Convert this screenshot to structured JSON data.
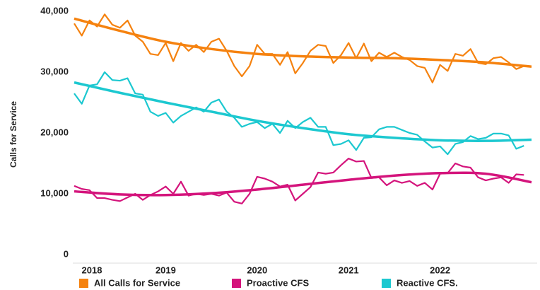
{
  "chart_data": {
    "type": "line",
    "y_label": "Calls for Service",
    "x": [
      2018.0,
      2018.083,
      2018.167,
      2018.25,
      2018.333,
      2018.417,
      2018.5,
      2018.583,
      2018.667,
      2018.75,
      2018.833,
      2018.917,
      2019.0,
      2019.083,
      2019.167,
      2019.25,
      2019.333,
      2019.417,
      2019.5,
      2019.583,
      2019.667,
      2019.75,
      2019.833,
      2019.917,
      2020.0,
      2020.083,
      2020.167,
      2020.25,
      2020.333,
      2020.417,
      2020.5,
      2020.583,
      2020.667,
      2020.75,
      2020.833,
      2020.917,
      2021.0,
      2021.083,
      2021.167,
      2021.25,
      2021.333,
      2021.417,
      2021.5,
      2021.583,
      2021.667,
      2021.75,
      2021.833,
      2021.917,
      2022.0,
      2022.083,
      2022.167,
      2022.25,
      2022.333,
      2022.417,
      2022.5,
      2022.583,
      2022.667,
      2022.75,
      2022.833,
      2022.917
    ],
    "trend_x": [
      2018.0,
      2018.5,
      2019.0,
      2019.5,
      2020.0,
      2020.5,
      2021.0,
      2021.5,
      2022.0,
      2022.5,
      2023.0
    ],
    "series": [
      {
        "name": "All Calls for Service",
        "color": "#f5820f",
        "values": [
          38000,
          36000,
          38500,
          37500,
          39500,
          37800,
          37300,
          38500,
          36000,
          35000,
          33000,
          32800,
          34800,
          31800,
          34800,
          33500,
          34500,
          33300,
          35000,
          35500,
          33500,
          31000,
          29300,
          31000,
          34500,
          33000,
          33000,
          31200,
          33300,
          29800,
          31500,
          33500,
          34500,
          34300,
          31500,
          32800,
          34800,
          32300,
          34700,
          31800,
          33200,
          32500,
          33200,
          32500,
          32000,
          31000,
          30700,
          28300,
          31200,
          30200,
          33000,
          32700,
          33800,
          31500,
          31300,
          32300,
          32500,
          31600,
          30500,
          31000
        ],
        "trend": [
          38800,
          36800,
          35000,
          33800,
          33000,
          32600,
          32400,
          32300,
          32000,
          31600,
          30900
        ]
      },
      {
        "name": "Proactive CFS",
        "color": "#d4147c",
        "values": [
          11300,
          10800,
          10600,
          9300,
          9300,
          9000,
          8800,
          9400,
          10000,
          9000,
          9800,
          10400,
          11200,
          10000,
          12000,
          9700,
          10000,
          9800,
          10000,
          9700,
          10200,
          8700,
          8400,
          10000,
          12800,
          12500,
          12000,
          11200,
          11500,
          8900,
          10000,
          11100,
          13500,
          13300,
          13500,
          14700,
          15800,
          15300,
          15400,
          12600,
          12700,
          11400,
          12200,
          11800,
          12100,
          11300,
          11800,
          10700,
          13300,
          13400,
          15000,
          14500,
          14300,
          12700,
          12200,
          12500,
          12700,
          11800,
          13200,
          13100
        ],
        "trend": [
          10400,
          9900,
          9800,
          10100,
          10700,
          11500,
          12300,
          13000,
          13400,
          13300,
          11900
        ]
      },
      {
        "name": "Reactive CFS.",
        "color": "#1cc8d0",
        "values": [
          26500,
          24800,
          27800,
          28000,
          30000,
          28700,
          28600,
          29000,
          26500,
          26300,
          23500,
          22800,
          23300,
          21700,
          22800,
          23500,
          24200,
          23500,
          25000,
          25500,
          23500,
          22500,
          21000,
          21500,
          21800,
          20800,
          21500,
          20000,
          22000,
          20800,
          21800,
          22500,
          21000,
          21000,
          18000,
          18200,
          18800,
          17200,
          19200,
          19300,
          20600,
          21000,
          21000,
          20500,
          20000,
          19700,
          18600,
          17600,
          17800,
          16500,
          18200,
          18500,
          19500,
          19000,
          19200,
          19900,
          19900,
          19600,
          17400,
          17900
        ],
        "trend": [
          28300,
          26600,
          25000,
          23500,
          22000,
          20800,
          19800,
          19200,
          18800,
          18700,
          18900
        ]
      }
    ],
    "xlim": [
      2018.0,
      2023.0
    ],
    "xticks": [
      2018,
      2019,
      2020,
      2021,
      2022
    ],
    "ylim": [
      0,
      40000
    ],
    "yticks": [
      0,
      {
        "value": 10000,
        "label": "10,000"
      },
      {
        "value": 20000,
        "label": "20,000"
      },
      {
        "value": 30000,
        "label": "30,000"
      },
      {
        "value": 40000,
        "label": "40,000"
      }
    ],
    "grid": false,
    "legend": "bottom"
  }
}
